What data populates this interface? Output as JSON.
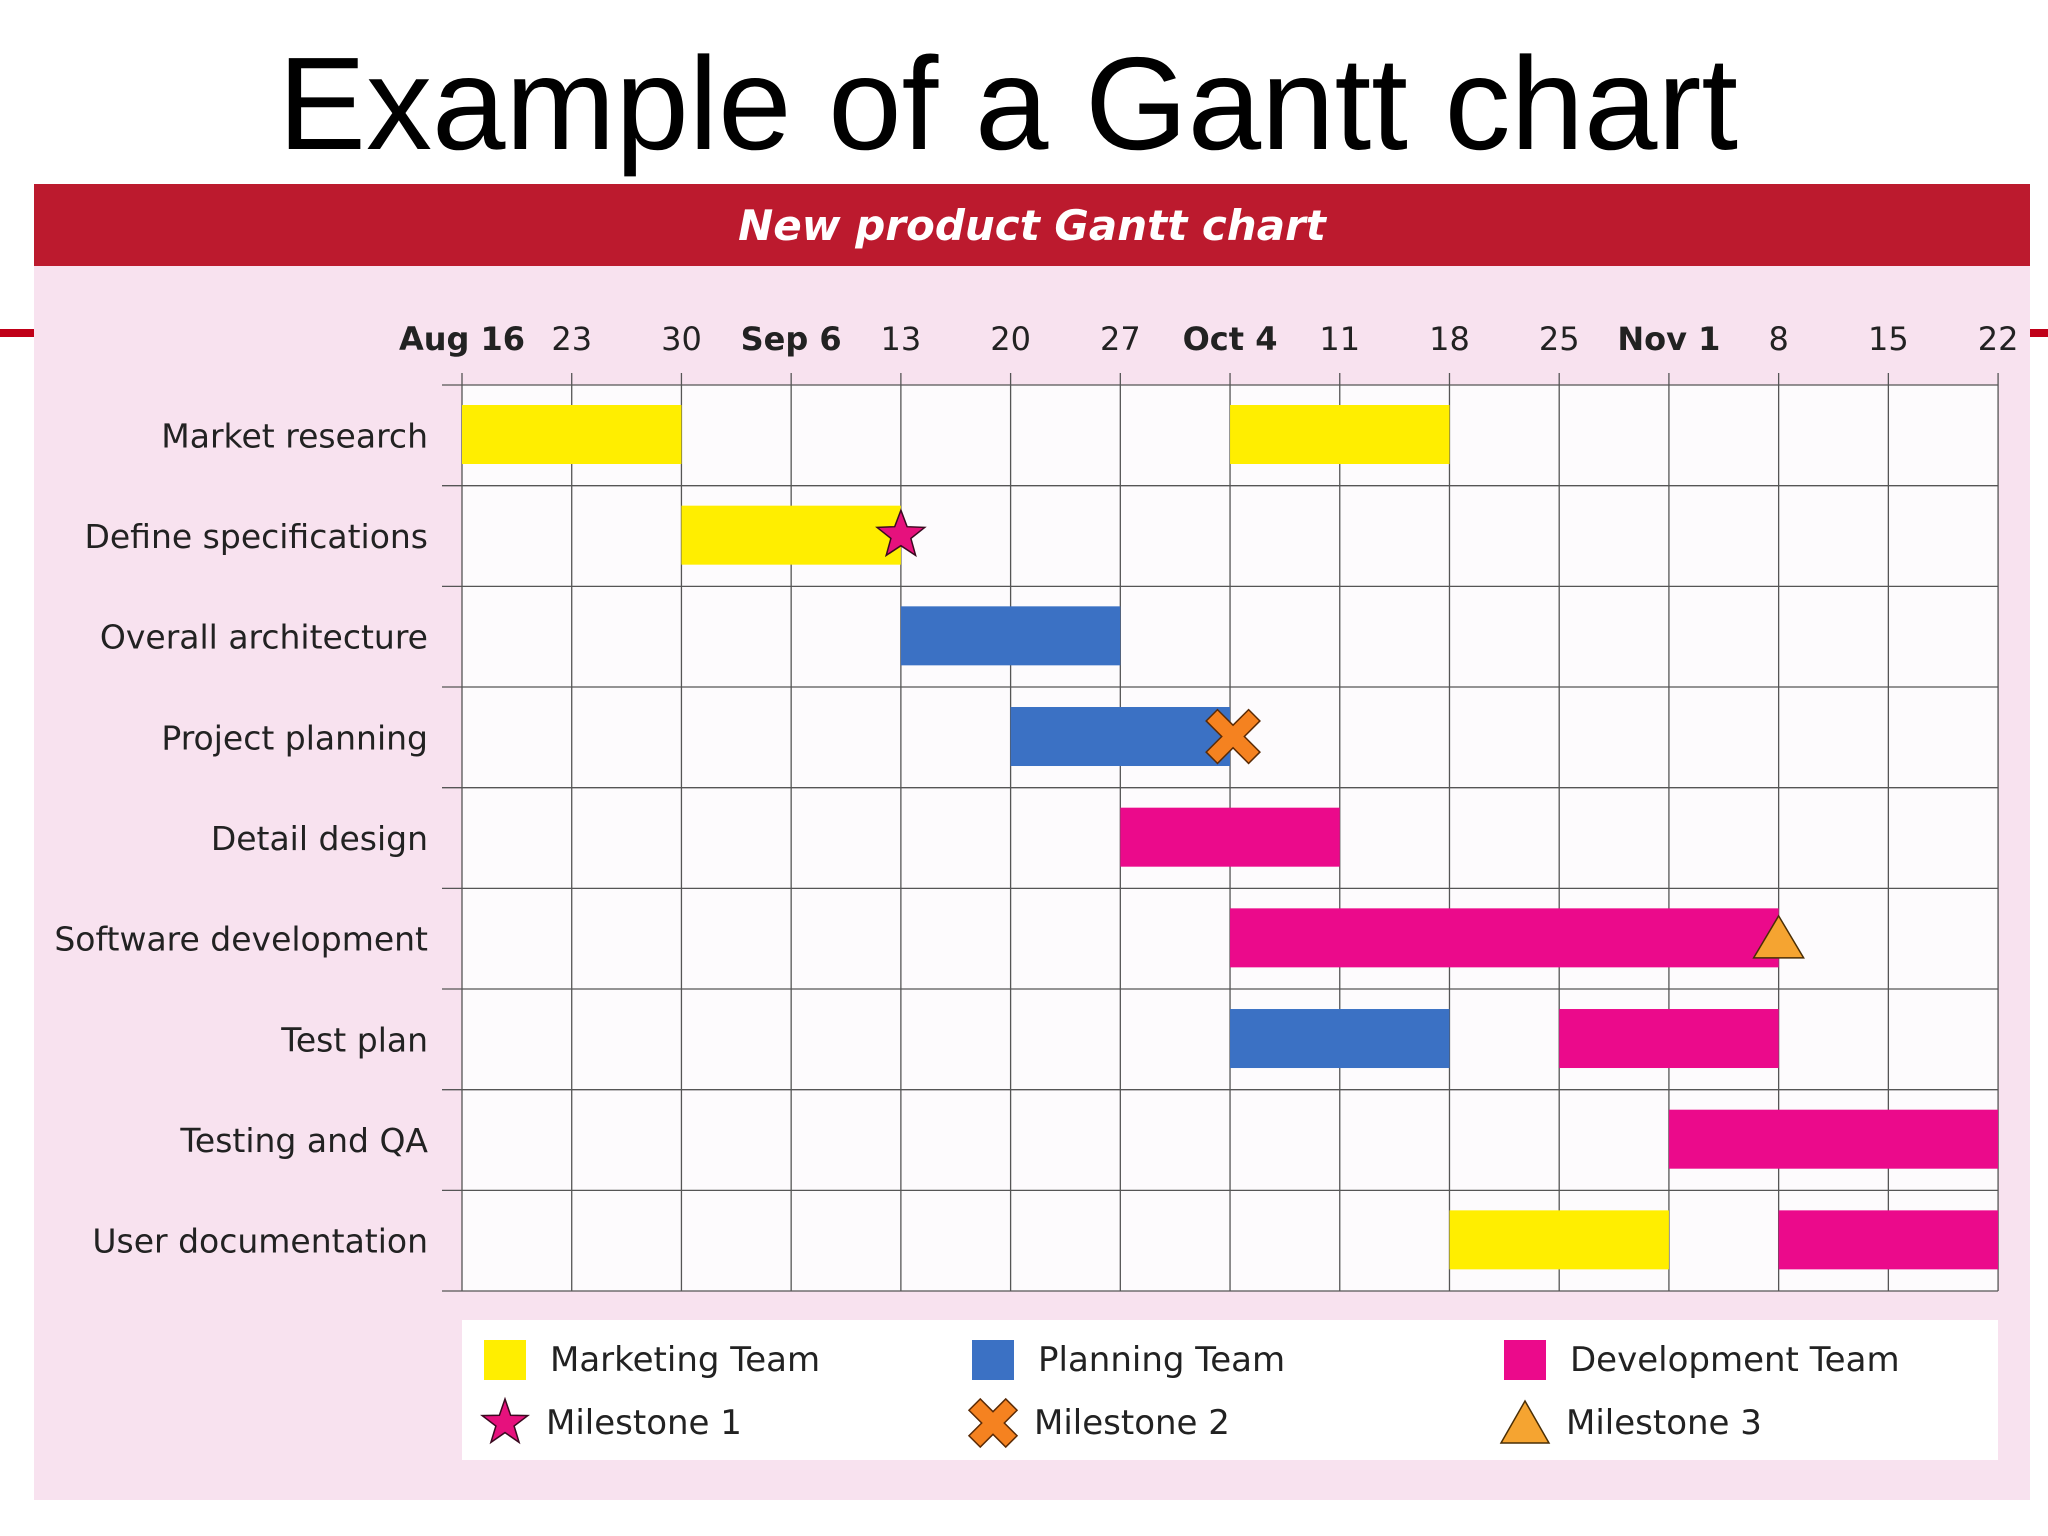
{
  "slide": {
    "title": "Example of a Gantt chart"
  },
  "colors": {
    "marketing": "#ffee00",
    "planning": "#3b71c4",
    "development": "#eb0a8b",
    "milestone1": "#e6117d",
    "milestone2": "#f58220",
    "milestone3": "#f5a431",
    "header": "#bc1a2e",
    "panel": "#f8e2ef"
  },
  "chart_data": {
    "type": "gantt",
    "title": "New product Gantt chart",
    "x_ticks": [
      {
        "label": "Aug 16",
        "bold": true
      },
      {
        "label": "23",
        "bold": false
      },
      {
        "label": "30",
        "bold": false
      },
      {
        "label": "Sep 6",
        "bold": true
      },
      {
        "label": "13",
        "bold": false
      },
      {
        "label": "20",
        "bold": false
      },
      {
        "label": "27",
        "bold": false
      },
      {
        "label": "Oct 4",
        "bold": true
      },
      {
        "label": "11",
        "bold": false
      },
      {
        "label": "18",
        "bold": false
      },
      {
        "label": "25",
        "bold": false
      },
      {
        "label": "Nov 1",
        "bold": true
      },
      {
        "label": "8",
        "bold": false
      },
      {
        "label": "15",
        "bold": false
      },
      {
        "label": "22",
        "bold": false
      }
    ],
    "tasks": [
      {
        "name": "Market research",
        "bars": [
          {
            "start": "Aug 16",
            "end": "Aug 30",
            "team": "marketing"
          },
          {
            "start": "Oct 4",
            "end": "Oct 18",
            "team": "marketing"
          }
        ]
      },
      {
        "name": "Define specifications",
        "bars": [
          {
            "start": "Aug 30",
            "end": "Sep 13",
            "team": "marketing"
          }
        ]
      },
      {
        "name": "Overall architecture",
        "bars": [
          {
            "start": "Sep 13",
            "end": "Sep 27",
            "team": "planning"
          }
        ]
      },
      {
        "name": "Project planning",
        "bars": [
          {
            "start": "Sep 20",
            "end": "Oct 4",
            "team": "planning"
          }
        ]
      },
      {
        "name": "Detail design",
        "bars": [
          {
            "start": "Sep 27",
            "end": "Oct 11",
            "team": "development"
          }
        ]
      },
      {
        "name": "Software development",
        "bars": [
          {
            "start": "Oct 4",
            "end": "Nov 8",
            "team": "development"
          }
        ]
      },
      {
        "name": "Test plan",
        "bars": [
          {
            "start": "Oct 4",
            "end": "Oct 18",
            "team": "planning"
          },
          {
            "start": "Oct 25",
            "end": "Nov 8",
            "team": "development"
          }
        ]
      },
      {
        "name": "Testing and QA",
        "bars": [
          {
            "start": "Nov 1",
            "end": "Nov 22",
            "team": "development"
          }
        ]
      },
      {
        "name": "User documentation",
        "bars": [
          {
            "start": "Oct 18",
            "end": "Nov 1",
            "team": "marketing"
          },
          {
            "start": "Nov 8",
            "end": "Nov 22",
            "team": "development"
          }
        ]
      }
    ],
    "milestones": [
      {
        "name": "Milestone 1",
        "task": "Define specifications",
        "date": "Sep 13",
        "shape": "star"
      },
      {
        "name": "Milestone 2",
        "task": "Project planning",
        "date": "Oct 4",
        "shape": "cross"
      },
      {
        "name": "Milestone 3",
        "task": "Software development",
        "date": "Nov 8",
        "shape": "triangle"
      }
    ],
    "legend": {
      "marketing": "Marketing Team",
      "planning": "Planning Team",
      "development": "Development Team",
      "milestone1": "Milestone 1",
      "milestone2": "Milestone 2",
      "milestone3": "Milestone 3"
    }
  }
}
